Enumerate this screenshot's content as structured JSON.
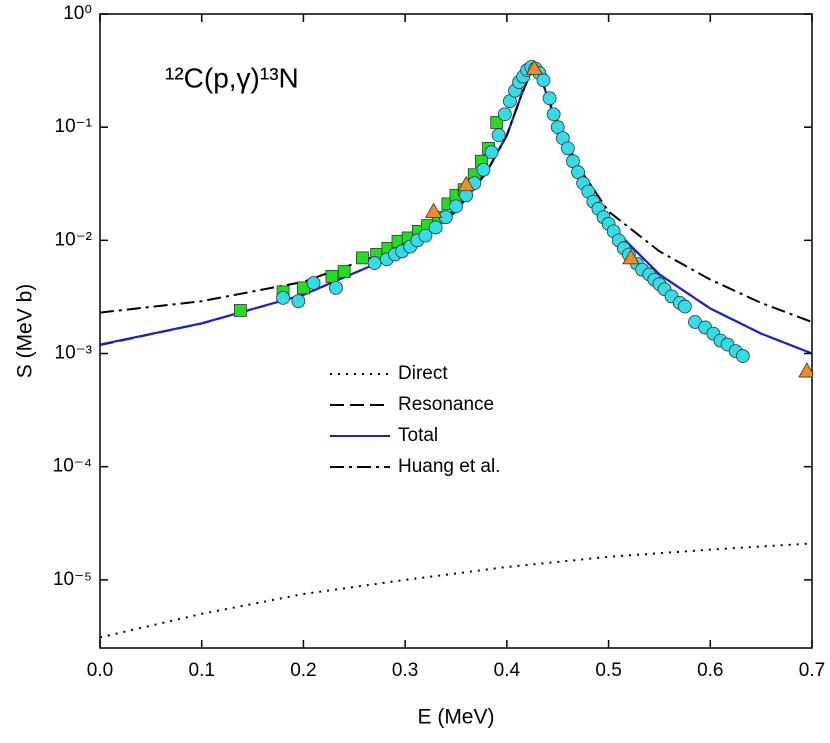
{
  "chart_data": {
    "type": "scatter-line",
    "title": "¹²C(p,γ)¹³N",
    "xlabel": "E (MeV)",
    "ylabel": "S (MeV b)",
    "xlim": [
      0,
      0.7
    ],
    "ylim": [
      2.5e-06,
      1
    ],
    "log_y": true,
    "xticks": [
      {
        "value": 0,
        "label": "0.0"
      },
      0.1,
      0.2,
      0.3,
      0.4,
      0.5,
      0.6,
      0.7
    ],
    "yticks": [
      {
        "value": 1e-05,
        "label": "10⁻⁵"
      },
      {
        "value": 0.0001,
        "label": "10⁻⁴"
      },
      {
        "value": 0.001,
        "label": "10⁻³"
      },
      {
        "value": 0.01,
        "label": "10⁻²"
      },
      {
        "value": 0.1,
        "label": "10⁻¹"
      },
      {
        "value": 1,
        "label": "10⁰"
      }
    ],
    "series": [
      {
        "name": "Direct",
        "kind": "line",
        "color": "#000000",
        "dash": "dotted",
        "x": [
          0,
          0.1,
          0.2,
          0.3,
          0.4,
          0.5,
          0.6,
          0.7
        ],
        "values": [
          3.1e-06,
          5e-06,
          7.5e-06,
          1e-05,
          1.3e-05,
          1.6e-05,
          1.85e-05,
          2.1e-05
        ]
      },
      {
        "name": "Resonance",
        "kind": "line",
        "color": "#000000",
        "dash": "dashed",
        "x": [
          0,
          0.1,
          0.2,
          0.3,
          0.35,
          0.38,
          0.4,
          0.415,
          0.425,
          0.435,
          0.45,
          0.47,
          0.5,
          0.55,
          0.6,
          0.65,
          0.7
        ],
        "values": [
          0.00119,
          0.00184,
          0.0033,
          0.008,
          0.018,
          0.04,
          0.085,
          0.2,
          0.33,
          0.25,
          0.1,
          0.04,
          0.014,
          0.005,
          0.0025,
          0.0015,
          0.001
        ]
      },
      {
        "name": "Total",
        "kind": "line",
        "color": "#1f1fcc",
        "dash": "solid",
        "x": [
          0,
          0.1,
          0.2,
          0.3,
          0.35,
          0.38,
          0.4,
          0.415,
          0.425,
          0.435,
          0.45,
          0.47,
          0.5,
          0.55,
          0.6,
          0.65,
          0.7
        ],
        "values": [
          0.0012,
          0.00185,
          0.0033,
          0.008,
          0.018,
          0.04,
          0.085,
          0.2,
          0.33,
          0.25,
          0.1,
          0.04,
          0.014,
          0.005,
          0.0025,
          0.0015,
          0.001
        ]
      },
      {
        "name": "Huang et al.",
        "kind": "line",
        "color": "#000000",
        "dash": "dashdot",
        "x": [
          0,
          0.1,
          0.2,
          0.3,
          0.35,
          0.38,
          0.4,
          0.415,
          0.425,
          0.435,
          0.45,
          0.47,
          0.5,
          0.55,
          0.6,
          0.65,
          0.7
        ],
        "values": [
          0.0023,
          0.0029,
          0.0043,
          0.009,
          0.019,
          0.04,
          0.085,
          0.2,
          0.33,
          0.25,
          0.11,
          0.045,
          0.018,
          0.008,
          0.0045,
          0.0028,
          0.0019
        ]
      },
      {
        "kind": "square",
        "color": "#22dd22",
        "x": [
          0.138,
          0.18,
          0.2,
          0.228,
          0.24,
          0.258,
          0.272,
          0.283,
          0.293,
          0.303,
          0.313,
          0.322,
          0.333,
          0.342,
          0.35,
          0.358,
          0.368,
          0.375,
          0.382,
          0.39
        ],
        "values": [
          0.0024,
          0.0035,
          0.0038,
          0.0048,
          0.0053,
          0.007,
          0.0075,
          0.0085,
          0.0098,
          0.0105,
          0.012,
          0.0135,
          0.016,
          0.021,
          0.025,
          0.028,
          0.038,
          0.05,
          0.065,
          0.11
        ]
      },
      {
        "kind": "circle",
        "color": "#33dde8",
        "x": [
          0.18,
          0.195,
          0.21,
          0.232,
          0.27,
          0.282,
          0.29,
          0.297,
          0.305,
          0.312,
          0.32,
          0.33,
          0.34,
          0.35,
          0.36,
          0.368,
          0.377,
          0.385,
          0.392,
          0.398,
          0.403,
          0.408,
          0.412,
          0.416,
          0.42,
          0.424,
          0.428,
          0.432,
          0.436,
          0.442,
          0.446,
          0.45,
          0.455,
          0.46,
          0.465,
          0.47,
          0.475,
          0.48,
          0.485,
          0.49,
          0.495,
          0.5,
          0.505,
          0.51,
          0.515,
          0.52,
          0.528,
          0.533,
          0.54,
          0.545,
          0.55,
          0.555,
          0.562,
          0.57,
          0.575,
          0.585,
          0.595,
          0.603,
          0.61,
          0.617,
          0.625,
          0.632
        ],
        "values": [
          0.0031,
          0.0029,
          0.0042,
          0.0038,
          0.0063,
          0.0068,
          0.0075,
          0.008,
          0.0088,
          0.01,
          0.011,
          0.013,
          0.016,
          0.02,
          0.025,
          0.032,
          0.042,
          0.06,
          0.085,
          0.13,
          0.17,
          0.21,
          0.25,
          0.28,
          0.32,
          0.34,
          0.33,
          0.3,
          0.26,
          0.18,
          0.13,
          0.1,
          0.08,
          0.065,
          0.05,
          0.04,
          0.032,
          0.027,
          0.022,
          0.019,
          0.016,
          0.014,
          0.012,
          0.01,
          0.0085,
          0.0075,
          0.0062,
          0.0055,
          0.005,
          0.0045,
          0.0041,
          0.0037,
          0.0032,
          0.0028,
          0.0026,
          0.0019,
          0.0017,
          0.0015,
          0.0013,
          0.0012,
          0.00105,
          0.00095
        ]
      },
      {
        "kind": "triangle",
        "color": "#f08a24",
        "x": [
          0.328,
          0.36,
          0.427,
          0.522,
          0.695
        ],
        "values": [
          0.018,
          0.031,
          0.33,
          0.007,
          0.0007
        ]
      }
    ]
  }
}
